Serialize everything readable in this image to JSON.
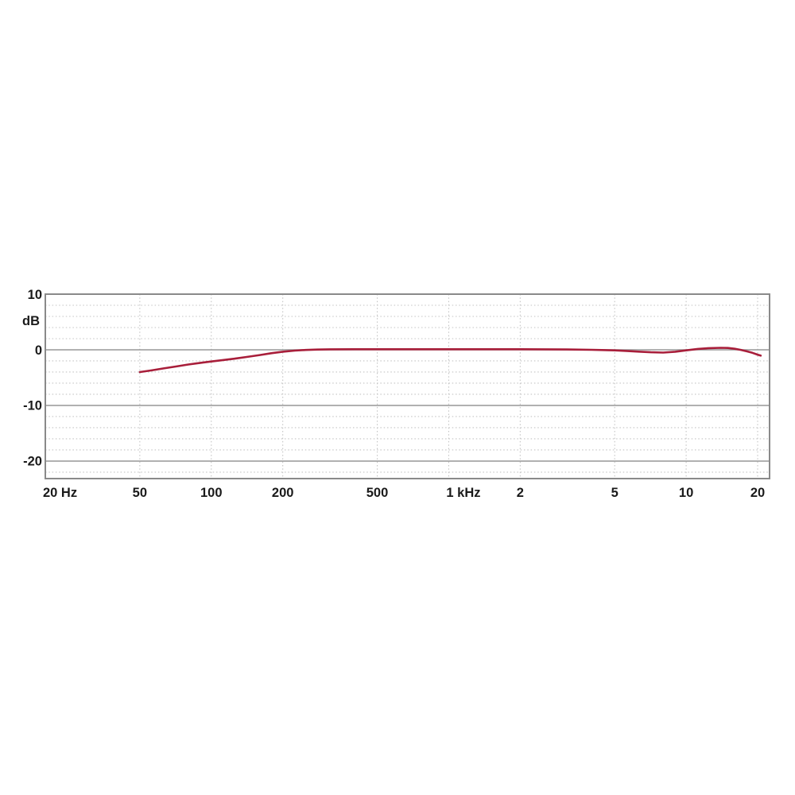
{
  "page": {
    "background_color": "#ffffff",
    "description": "Microphone frequency response chart on white page"
  },
  "chart_data": {
    "type": "line",
    "title": "",
    "x_axis": {
      "scale": "log",
      "unit": "Hz",
      "min": 20,
      "max": 22450,
      "ticks": [
        {
          "value": 20,
          "label": "20 Hz",
          "align": "start"
        },
        {
          "value": 50,
          "label": "50",
          "align": "middle"
        },
        {
          "value": 100,
          "label": "100",
          "align": "middle"
        },
        {
          "value": 200,
          "label": "200",
          "align": "middle"
        },
        {
          "value": 500,
          "label": "500",
          "align": "middle"
        },
        {
          "value": 1000,
          "label": "1 kHz",
          "align": "start"
        },
        {
          "value": 2000,
          "label": "2",
          "align": "middle"
        },
        {
          "value": 5000,
          "label": "5",
          "align": "middle"
        },
        {
          "value": 10000,
          "label": "10",
          "align": "middle"
        },
        {
          "value": 20000,
          "label": "20",
          "align": "middle"
        }
      ],
      "gridline_values": [
        50,
        100,
        200,
        500,
        1000,
        2000,
        5000,
        10000,
        20000
      ]
    },
    "y_axis": {
      "label": "dB",
      "min": -23.15,
      "max": 10,
      "major_ticks": [
        {
          "value": 10,
          "label": "10"
        },
        {
          "value": 0,
          "label": "0"
        },
        {
          "value": -10,
          "label": "-10"
        },
        {
          "value": -20,
          "label": "-20"
        }
      ],
      "solid_gridlines": [
        0,
        -10,
        -20
      ],
      "minor_step": 2,
      "grid": "major solid, minor dotted every 2 dB"
    },
    "series": [
      {
        "name": "frequency-response",
        "color": "#a81e3a",
        "points": [
          [
            50,
            -4.0
          ],
          [
            56,
            -3.7
          ],
          [
            63,
            -3.35
          ],
          [
            71,
            -3.0
          ],
          [
            80,
            -2.65
          ],
          [
            90,
            -2.35
          ],
          [
            100,
            -2.1
          ],
          [
            112,
            -1.85
          ],
          [
            125,
            -1.6
          ],
          [
            140,
            -1.3
          ],
          [
            160,
            -0.95
          ],
          [
            180,
            -0.6
          ],
          [
            200,
            -0.35
          ],
          [
            225,
            -0.15
          ],
          [
            250,
            -0.03
          ],
          [
            280,
            0.04
          ],
          [
            315,
            0.08
          ],
          [
            400,
            0.1
          ],
          [
            500,
            0.1
          ],
          [
            630,
            0.1
          ],
          [
            800,
            0.1
          ],
          [
            1000,
            0.1
          ],
          [
            1250,
            0.1
          ],
          [
            1600,
            0.1
          ],
          [
            2000,
            0.1
          ],
          [
            2500,
            0.08
          ],
          [
            3150,
            0.05
          ],
          [
            4000,
            0.0
          ],
          [
            5000,
            -0.1
          ],
          [
            5600,
            -0.2
          ],
          [
            6300,
            -0.33
          ],
          [
            7100,
            -0.45
          ],
          [
            8000,
            -0.5
          ],
          [
            9000,
            -0.35
          ],
          [
            10000,
            -0.1
          ],
          [
            11200,
            0.15
          ],
          [
            12500,
            0.3
          ],
          [
            14000,
            0.35
          ],
          [
            15000,
            0.32
          ],
          [
            16000,
            0.18
          ],
          [
            17000,
            -0.02
          ],
          [
            18000,
            -0.28
          ],
          [
            19000,
            -0.55
          ],
          [
            20000,
            -0.88
          ],
          [
            20600,
            -1.05
          ]
        ]
      }
    ],
    "style": {
      "frame_color": "#8a8a8a",
      "solid_grid_color": "#979797",
      "dotted_grid_color": "#c3c3c3",
      "text_color": "#1a1a1a",
      "curve_color": "#a81e3a",
      "background": "#ffffff"
    },
    "legend": "none"
  }
}
